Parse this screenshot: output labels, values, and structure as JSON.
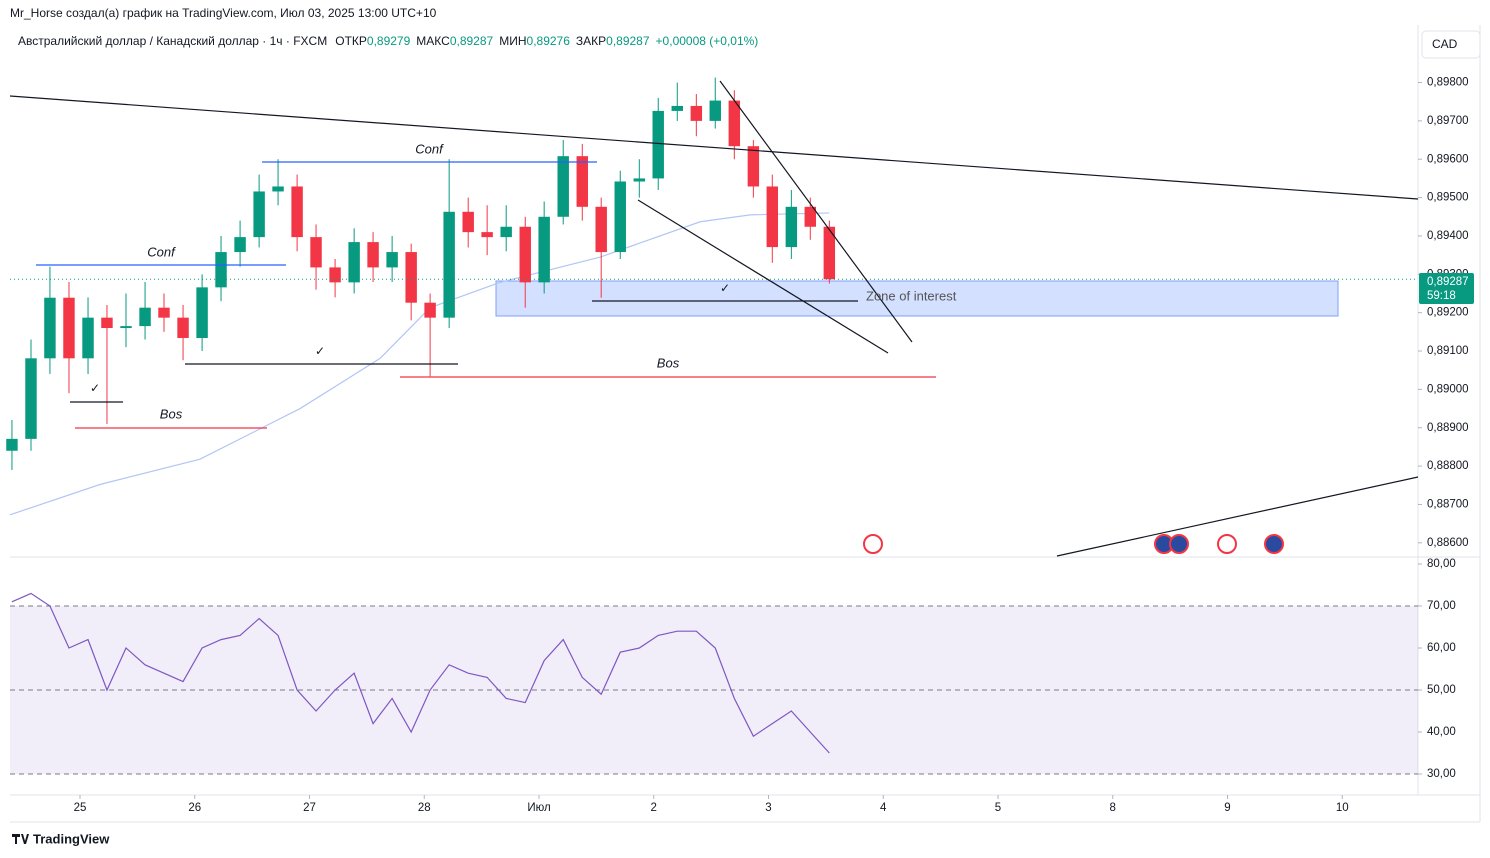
{
  "header": {
    "author_line": "Mr_Horse создал(а) график на TradingView.com, Июл 03, 2025 13:00 UTC+10",
    "symbol": "Австралийский доллар / Канадский доллар · 1ч · FXCM",
    "open_label": "ОТКР",
    "open": "0,89279",
    "high_label": "МАКС",
    "high": "0,89287",
    "low_label": "МИН",
    "low": "0,89276",
    "close_label": "ЗАКР",
    "close": "0,89287",
    "change": "+0,00008 (+0,01%)",
    "currency": "CAD",
    "price_tag": "0,89287",
    "countdown": "59:18",
    "brand": "TradingView"
  },
  "chart_data": [
    {
      "type": "candlestick",
      "up_color": "#089981",
      "down_color": "#f23645",
      "x": [
        -0.593,
        -0.427,
        -0.262,
        -0.096,
        0.07,
        0.235,
        0.401,
        0.567,
        0.732,
        0.898,
        1.064,
        1.229,
        1.395,
        1.561,
        1.726,
        1.892,
        2.057,
        2.223,
        2.389,
        2.554,
        2.72,
        2.886,
        3.051,
        3.217,
        3.383,
        3.548,
        3.714,
        3.88,
        4.045,
        4.211,
        4.377,
        4.542,
        4.708,
        4.874,
        5.039,
        5.205,
        5.371,
        5.536,
        5.702,
        5.868,
        6.033,
        6.199,
        6.364,
        6.53
      ],
      "ohlc": [
        [
          0.8884,
          0.8892,
          0.8879,
          0.88871
        ],
        [
          0.88871,
          0.8913,
          0.8884,
          0.89081
        ],
        [
          0.89081,
          0.8932,
          0.8904,
          0.89239
        ],
        [
          0.89239,
          0.8928,
          0.8899,
          0.89081
        ],
        [
          0.89081,
          0.8924,
          0.8904,
          0.89187
        ],
        [
          0.89187,
          0.8922,
          0.8891,
          0.8916
        ],
        [
          0.8916,
          0.8925,
          0.8911,
          0.89165
        ],
        [
          0.89165,
          0.8928,
          0.8913,
          0.89213
        ],
        [
          0.89213,
          0.8925,
          0.8915,
          0.89187
        ],
        [
          0.89187,
          0.8922,
          0.89076,
          0.89134
        ],
        [
          0.89134,
          0.893,
          0.891,
          0.89266
        ],
        [
          0.89266,
          0.894,
          0.8923,
          0.89358
        ],
        [
          0.89358,
          0.8944,
          0.8932,
          0.89397
        ],
        [
          0.89397,
          0.8956,
          0.8937,
          0.89516
        ],
        [
          0.89516,
          0.896,
          0.8948,
          0.89529
        ],
        [
          0.89529,
          0.8956,
          0.8936,
          0.89397
        ],
        [
          0.89397,
          0.8943,
          0.8926,
          0.89318
        ],
        [
          0.89318,
          0.8934,
          0.8924,
          0.89279
        ],
        [
          0.89279,
          0.8942,
          0.8925,
          0.89384
        ],
        [
          0.89384,
          0.8941,
          0.8928,
          0.89318
        ],
        [
          0.89318,
          0.894,
          0.8928,
          0.89358
        ],
        [
          0.89358,
          0.8938,
          0.8918,
          0.89226
        ],
        [
          0.89226,
          0.8925,
          0.89034,
          0.89187
        ],
        [
          0.89187,
          0.896,
          0.8916,
          0.89463
        ],
        [
          0.89463,
          0.895,
          0.8937,
          0.8941
        ],
        [
          0.8941,
          0.8948,
          0.8935,
          0.89397
        ],
        [
          0.89397,
          0.8948,
          0.8936,
          0.89424
        ],
        [
          0.89424,
          0.8945,
          0.89213,
          0.89279
        ],
        [
          0.89279,
          0.8949,
          0.8925,
          0.8945
        ],
        [
          0.8945,
          0.8965,
          0.8943,
          0.89608
        ],
        [
          0.89608,
          0.8964,
          0.8944,
          0.89476
        ],
        [
          0.89476,
          0.895,
          0.89239,
          0.89358
        ],
        [
          0.89358,
          0.8957,
          0.8934,
          0.89542
        ],
        [
          0.89542,
          0.896,
          0.895,
          0.8955
        ],
        [
          0.8955,
          0.8976,
          0.8952,
          0.89726
        ],
        [
          0.89726,
          0.898,
          0.897,
          0.89739
        ],
        [
          0.89739,
          0.8977,
          0.8966,
          0.897
        ],
        [
          0.897,
          0.89813,
          0.8968,
          0.89753
        ],
        [
          0.89753,
          0.8978,
          0.896,
          0.89634
        ],
        [
          0.89634,
          0.8965,
          0.895,
          0.89529
        ],
        [
          0.89529,
          0.8956,
          0.8933,
          0.89371
        ],
        [
          0.89371,
          0.8952,
          0.8934,
          0.89476
        ],
        [
          0.89476,
          0.895,
          0.8939,
          0.89424
        ],
        [
          0.89424,
          0.8944,
          0.89276,
          0.89287
        ]
      ],
      "ma": {
        "color": "#b2c5f5",
        "x": [
          -0.61,
          0.174,
          1.046,
          1.918,
          2.616,
          3.051,
          3.662,
          4.534,
          5.405,
          5.841,
          6.53
        ],
        "values": [
          0.88673,
          0.88752,
          0.88818,
          0.8895,
          0.89081,
          0.89213,
          0.89279,
          0.89345,
          0.89437,
          0.89455,
          0.8946
        ]
      },
      "xlim": [
        -0.61,
        11.66
      ],
      "xticks": [
        {
          "value": 0,
          "label": "25"
        },
        {
          "value": 1,
          "label": "26"
        },
        {
          "value": 2,
          "label": "27"
        },
        {
          "value": 3,
          "label": "28"
        },
        {
          "value": 4,
          "label": "Июл"
        },
        {
          "value": 5,
          "label": "2"
        },
        {
          "value": 6,
          "label": "3"
        },
        {
          "value": 7,
          "label": "4"
        },
        {
          "value": 8,
          "label": "5"
        },
        {
          "value": 9,
          "label": "8"
        },
        {
          "value": 10,
          "label": "9"
        },
        {
          "value": 11,
          "label": "10"
        }
      ],
      "ylim": [
        0.88563,
        0.8995
      ],
      "yticks": [
        {
          "value": 0.886,
          "label": "0,88600"
        },
        {
          "value": 0.887,
          "label": "0,88700"
        },
        {
          "value": 0.888,
          "label": "0,88800"
        },
        {
          "value": 0.889,
          "label": "0,88900"
        },
        {
          "value": 0.89,
          "label": "0,89000"
        },
        {
          "value": 0.891,
          "label": "0,89100"
        },
        {
          "value": 0.892,
          "label": "0,89200"
        },
        {
          "value": 0.893,
          "label": "0,89300"
        },
        {
          "value": 0.894,
          "label": "0,89400"
        },
        {
          "value": 0.895,
          "label": "0,89500"
        },
        {
          "value": 0.896,
          "label": "0,89600"
        },
        {
          "value": 0.897,
          "label": "0,89700"
        },
        {
          "value": 0.898,
          "label": "0,89800"
        }
      ],
      "annotations": [
        "Conf",
        "Conf",
        "Bos",
        "Bos",
        "✓",
        "✓",
        "✓",
        "Zone of interest"
      ]
    },
    {
      "type": "line",
      "color": "#7e57c2",
      "x": [
        -0.593,
        -0.427,
        -0.262,
        -0.096,
        0.07,
        0.235,
        0.401,
        0.567,
        0.732,
        0.898,
        1.064,
        1.229,
        1.395,
        1.561,
        1.726,
        1.892,
        2.057,
        2.223,
        2.389,
        2.554,
        2.72,
        2.886,
        3.051,
        3.217,
        3.383,
        3.548,
        3.714,
        3.88,
        4.045,
        4.211,
        4.377,
        4.542,
        4.708,
        4.874,
        5.039,
        5.205,
        5.371,
        5.536,
        5.702,
        5.868,
        6.033,
        6.199,
        6.364,
        6.53
      ],
      "values": [
        71,
        73,
        70,
        60,
        62,
        50,
        60,
        56,
        54,
        52,
        60,
        62,
        63,
        67,
        63,
        50,
        45,
        50,
        54,
        42,
        48,
        40,
        50,
        56,
        54,
        53,
        48,
        47,
        57,
        62,
        53,
        49,
        59,
        60,
        63,
        64,
        64,
        60,
        48,
        39,
        42,
        45,
        40,
        35
      ],
      "ylim": [
        25,
        81.67
      ],
      "yticks": [
        {
          "value": 30,
          "label": "30,00"
        },
        {
          "value": 40,
          "label": "40,00"
        },
        {
          "value": 50,
          "label": "50,00"
        },
        {
          "value": 60,
          "label": "60,00"
        },
        {
          "value": 70,
          "label": "70,00"
        },
        {
          "value": 80,
          "label": "80,00"
        }
      ],
      "band": [
        30,
        70
      ],
      "levels": [
        30,
        50,
        70
      ]
    }
  ]
}
